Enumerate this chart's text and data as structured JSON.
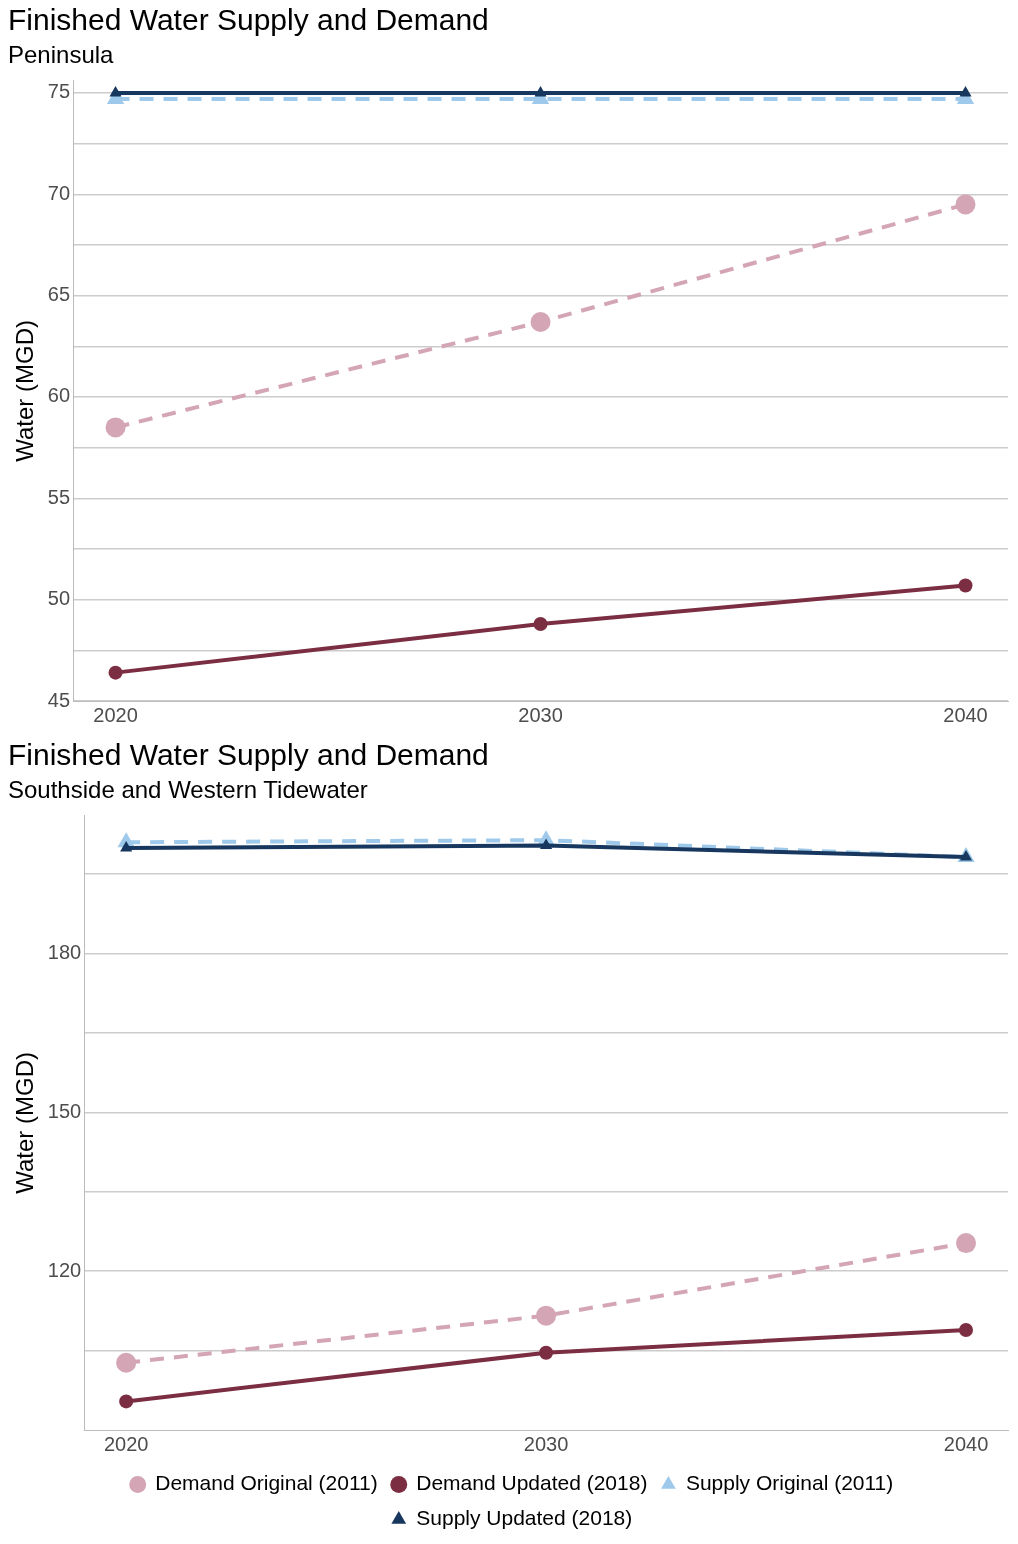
{
  "chart_data": [
    {
      "type": "line",
      "title": "Finished Water Supply and Demand",
      "subtitle": "Peninsula",
      "ylabel": "Water (MGD)",
      "x": [
        2020,
        2030,
        2040
      ],
      "xlim": [
        2019,
        2041
      ],
      "xticks": [
        2020,
        2030,
        2040
      ],
      "ylim": [
        45,
        75.6
      ],
      "yticks": [
        45,
        {
          "value": 47.5,
          "label": null
        },
        50,
        {
          "value": 52.5,
          "label": null
        },
        55,
        {
          "value": 57.5,
          "label": null
        },
        60,
        {
          "value": 62.5,
          "label": null
        },
        65,
        {
          "value": 67.5,
          "label": null
        },
        70,
        {
          "value": 72.5,
          "label": null
        },
        75
      ],
      "grid": "y",
      "legend": false,
      "series": [
        {
          "color": "#d4a5b5",
          "marker": "circle",
          "line_style": "dashed",
          "values": [
            58.5,
            63.7,
            69.5
          ]
        },
        {
          "color": "#7b2d42",
          "marker": "circle",
          "line_style": "solid",
          "values": [
            46.4,
            48.8,
            50.7
          ]
        },
        {
          "color": "#9ec9ea",
          "marker": "triangle",
          "line_style": "dashed",
          "values": [
            74.7,
            74.7,
            74.7
          ]
        },
        {
          "color": "#17375e",
          "marker": "triangle",
          "line_style": "solid",
          "values": [
            75,
            75,
            75
          ]
        }
      ]
    },
    {
      "type": "line",
      "title": "Finished Water Supply and Demand",
      "subtitle": "Southside and Western Tidewater",
      "ylabel": "Water (MGD)",
      "x": [
        2020,
        2030,
        2040
      ],
      "xlim": [
        2019,
        2041
      ],
      "xticks": [
        2020,
        2030,
        2040
      ],
      "ylim": [
        90,
        206
      ],
      "yticks": [
        {
          "value": 105,
          "label": null
        },
        120,
        {
          "value": 135,
          "label": null
        },
        150,
        {
          "value": 165,
          "label": null
        },
        180,
        {
          "value": 195,
          "label": null
        }
      ],
      "grid": "y",
      "legend": "bottom",
      "series": [
        {
          "name": "Demand Original (2011)",
          "color": "#d4a5b5",
          "marker": "circle",
          "line_style": "dashed",
          "values": [
            102.7,
            111.6,
            125.3
          ]
        },
        {
          "name": "Demand Updated (2018)",
          "color": "#7b2d42",
          "marker": "circle",
          "line_style": "solid",
          "values": [
            95.4,
            104.6,
            108.9
          ]
        },
        {
          "name": "Supply Original (2011)",
          "color": "#9ec9ea",
          "marker": "triangle",
          "line_style": "dashed",
          "values": [
            201,
            201.4,
            198.2
          ]
        },
        {
          "name": "Supply Updated (2018)",
          "color": "#17375e",
          "marker": "triangle",
          "line_style": "solid",
          "values": [
            199.9,
            200.4,
            198.2
          ]
        }
      ]
    }
  ]
}
